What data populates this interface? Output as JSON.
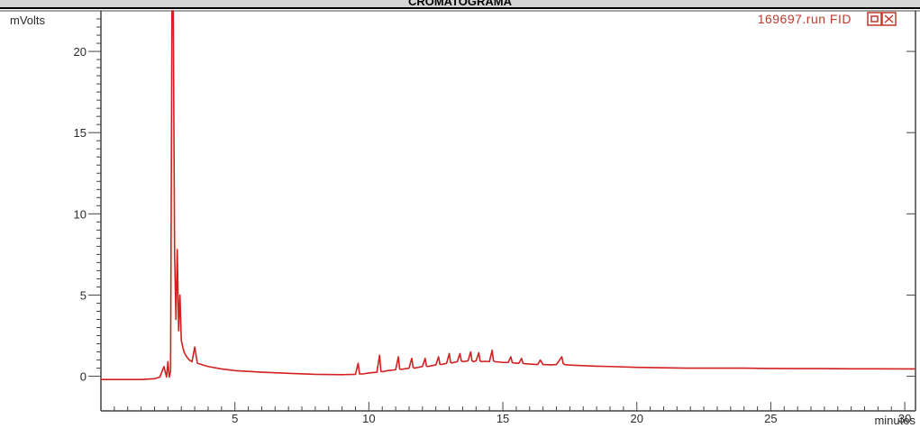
{
  "title": "CROMATOGRAMA",
  "run_label": "169697.run FID",
  "colors": {
    "trace": "#d42020",
    "axis": "#444444",
    "run_label": "#c0392b"
  },
  "window_icons": [
    "restore-icon",
    "close-icon"
  ],
  "chart_data": {
    "type": "line",
    "title": "",
    "xlabel": "minutes",
    "ylabel": "mVolts",
    "xlim": [
      0,
      30.4
    ],
    "ylim": [
      -0.8,
      22.5
    ],
    "x_ticks": [
      5,
      10,
      15,
      20,
      25,
      30
    ],
    "x_tick_labels": [
      "5",
      "10",
      "15",
      "20",
      "25",
      "30"
    ],
    "y_ticks": [
      0,
      5,
      10,
      15,
      20
    ],
    "y_tick_labels": [
      "0",
      "5",
      "10",
      "15",
      "20"
    ],
    "grid": false,
    "series": [
      {
        "name": "",
        "x": [
          0.0,
          1.0,
          1.5,
          2.0,
          2.2,
          2.35,
          2.45,
          2.5,
          2.55,
          2.6,
          2.65,
          2.7,
          2.75,
          2.8,
          2.85,
          2.9,
          2.95,
          3.0,
          3.1,
          3.2,
          3.3,
          3.4,
          3.5,
          3.6,
          3.8,
          4.0,
          4.5,
          5.0,
          6.0,
          7.0,
          8.0,
          9.0,
          9.5,
          9.6,
          9.65,
          9.7,
          9.8,
          10.0,
          10.3,
          10.4,
          10.45,
          10.5,
          10.7,
          11.0,
          11.1,
          11.15,
          11.2,
          11.5,
          11.6,
          11.65,
          11.7,
          12.0,
          12.1,
          12.15,
          12.2,
          12.5,
          12.6,
          12.65,
          12.7,
          12.9,
          13.0,
          13.05,
          13.1,
          13.3,
          13.4,
          13.45,
          13.5,
          13.7,
          13.8,
          13.85,
          13.9,
          14.0,
          14.1,
          14.15,
          14.2,
          14.3,
          14.5,
          14.6,
          14.65,
          14.7,
          15.0,
          15.2,
          15.3,
          15.35,
          15.4,
          15.6,
          15.7,
          15.75,
          15.8,
          16.0,
          16.3,
          16.4,
          16.5,
          16.8,
          17.0,
          17.2,
          17.25,
          17.3,
          17.4,
          17.6,
          18.0,
          18.5,
          19.0,
          20.0,
          21.0,
          22.0,
          23.0,
          24.0,
          25.0,
          26.0,
          27.0,
          28.0,
          29.0,
          30.0,
          30.4
        ],
        "y": [
          -0.2,
          -0.2,
          -0.2,
          -0.15,
          -0.05,
          0.6,
          -0.05,
          0.9,
          -0.05,
          0.3,
          22.5,
          22.5,
          7.5,
          3.5,
          7.8,
          2.8,
          5.0,
          2.2,
          1.5,
          1.2,
          1.0,
          0.9,
          1.8,
          0.8,
          0.7,
          0.6,
          0.45,
          0.35,
          0.25,
          0.18,
          0.12,
          0.1,
          0.12,
          0.8,
          0.15,
          0.14,
          0.15,
          0.2,
          0.25,
          1.3,
          0.3,
          0.28,
          0.35,
          0.4,
          1.2,
          0.45,
          0.42,
          0.5,
          1.1,
          0.55,
          0.5,
          0.6,
          1.1,
          0.62,
          0.6,
          0.7,
          1.2,
          0.75,
          0.72,
          0.8,
          1.4,
          0.85,
          0.82,
          0.9,
          1.4,
          0.95,
          0.9,
          0.95,
          1.5,
          0.95,
          0.9,
          0.95,
          1.45,
          0.95,
          0.9,
          0.92,
          0.9,
          1.6,
          0.95,
          0.9,
          0.85,
          0.85,
          1.2,
          0.85,
          0.82,
          0.8,
          1.1,
          0.8,
          0.78,
          0.75,
          0.72,
          1.0,
          0.72,
          0.7,
          0.72,
          1.2,
          0.8,
          0.72,
          0.7,
          0.68,
          0.65,
          0.62,
          0.6,
          0.55,
          0.52,
          0.5,
          0.5,
          0.5,
          0.48,
          0.47,
          0.47,
          0.46,
          0.46,
          0.45,
          0.45
        ]
      }
    ]
  }
}
